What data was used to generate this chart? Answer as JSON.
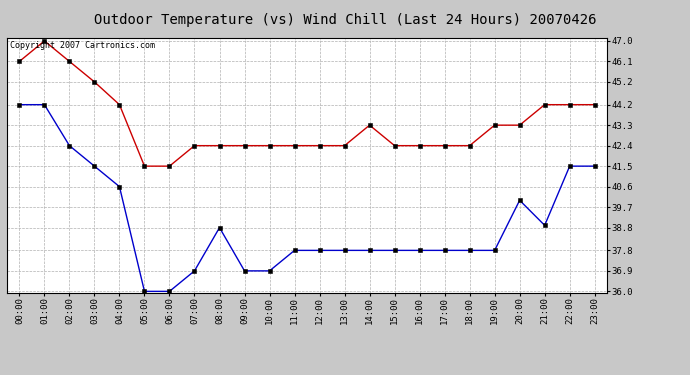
{
  "title": "Outdoor Temperature (vs) Wind Chill (Last 24 Hours) 20070426",
  "copyright_text": "Copyright 2007 Cartronics.com",
  "x_labels": [
    "00:00",
    "01:00",
    "02:00",
    "03:00",
    "04:00",
    "05:00",
    "06:00",
    "07:00",
    "08:00",
    "09:00",
    "10:00",
    "11:00",
    "12:00",
    "13:00",
    "14:00",
    "15:00",
    "16:00",
    "17:00",
    "18:00",
    "19:00",
    "20:00",
    "21:00",
    "22:00",
    "23:00"
  ],
  "red_data": [
    46.1,
    47.0,
    46.1,
    45.2,
    44.2,
    41.5,
    41.5,
    42.4,
    42.4,
    42.4,
    42.4,
    42.4,
    42.4,
    42.4,
    43.3,
    42.4,
    42.4,
    42.4,
    42.4,
    43.3,
    43.3,
    44.2,
    44.2,
    44.2
  ],
  "blue_data": [
    44.2,
    44.2,
    42.4,
    41.5,
    40.6,
    36.0,
    36.0,
    36.9,
    38.8,
    36.9,
    36.9,
    37.8,
    37.8,
    37.8,
    37.8,
    37.8,
    37.8,
    37.8,
    37.8,
    37.8,
    40.0,
    38.9,
    41.5,
    41.5
  ],
  "red_color": "#cc0000",
  "blue_color": "#0000cc",
  "bg_color": "#c8c8c8",
  "plot_bg_color": "#ffffff",
  "grid_color": "#b0b0b0",
  "ylim_min": 36.0,
  "ylim_max": 47.0,
  "ytick_values": [
    36.0,
    36.9,
    37.8,
    38.8,
    39.7,
    40.6,
    41.5,
    42.4,
    43.3,
    44.2,
    45.2,
    46.1,
    47.0
  ],
  "title_fontsize": 10,
  "copyright_fontsize": 6,
  "tick_fontsize": 6.5,
  "marker": "s",
  "marker_size": 2.5,
  "linewidth": 1.0
}
